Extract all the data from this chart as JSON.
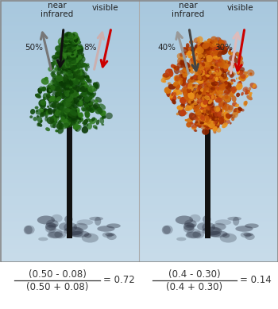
{
  "bg_top": "#a8c8de",
  "bg_bottom": "#c8dcea",
  "border_color": "#888888",
  "text_color": "#222222",
  "formula_color": "#333333",
  "left": {
    "nir_pct": "50%",
    "vis_pct": "8%",
    "nir_up_color": "#777777",
    "nir_down_color": "#111111",
    "vis_up_color": "#ccb0b0",
    "vis_down_color": "#cc0000",
    "foliage_colors": [
      "#0a3a05",
      "#0f4a08",
      "#154d0a",
      "#1a5c10",
      "#226614",
      "#2d7a1a"
    ],
    "trunk_color": "#111111",
    "shadow_color": "#2a3040",
    "formula_num": "(0.50 - 0.08)",
    "formula_den": "(0.50 + 0.08)",
    "formula_result": "= 0.72"
  },
  "right": {
    "nir_pct": "40%",
    "vis_pct": "30%",
    "nir_up_color": "#999999",
    "nir_down_color": "#444444",
    "vis_up_color": "#ddbbbb",
    "vis_down_color": "#cc0000",
    "foliage_colors": [
      "#8b2500",
      "#a83000",
      "#c04010",
      "#c85808",
      "#d4720e",
      "#e8901a"
    ],
    "trunk_color": "#111111",
    "shadow_color": "#2a3040",
    "formula_num": "(0.4 - 0.30)",
    "formula_den": "(0.4 + 0.30)",
    "formula_result": "= 0.14"
  },
  "nir_label": "near\ninfrared",
  "vis_label": "visible"
}
